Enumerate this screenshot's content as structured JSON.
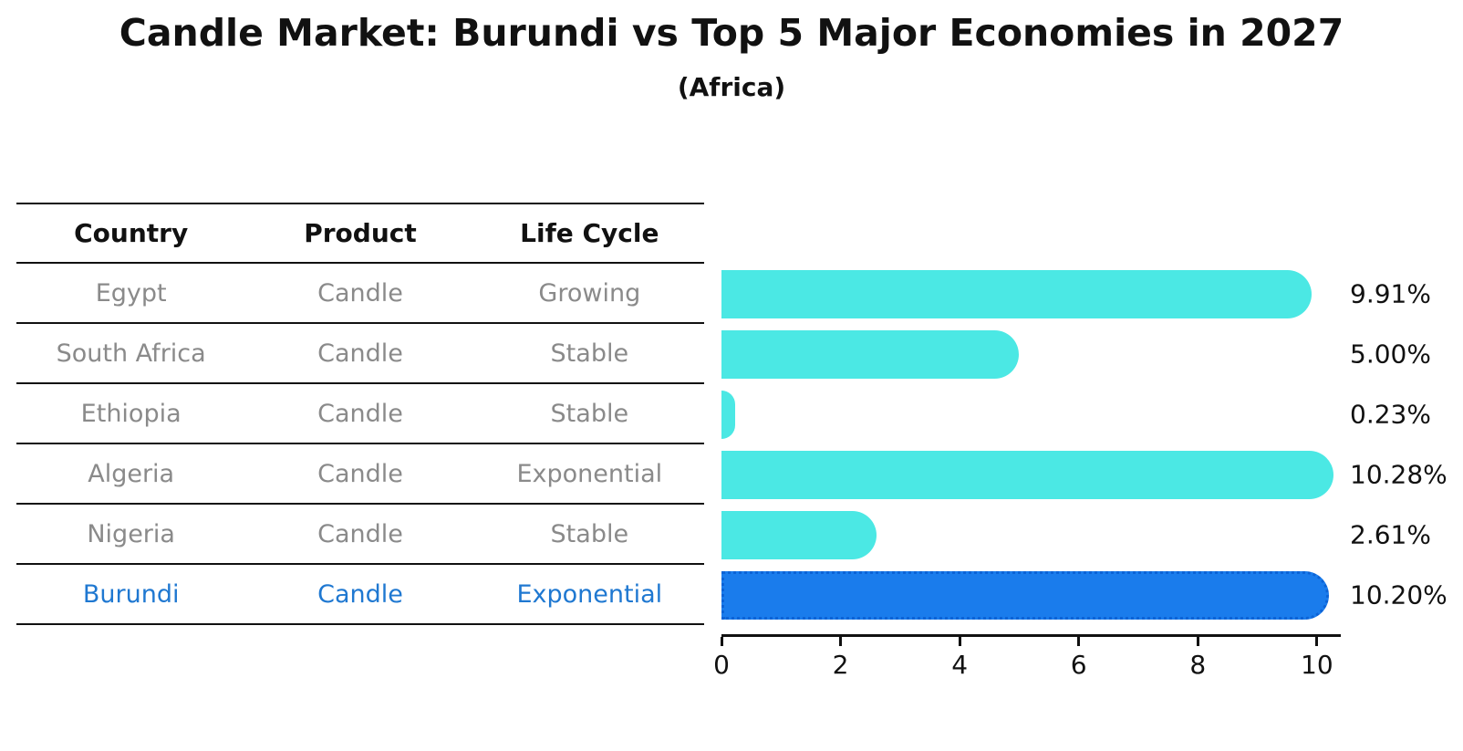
{
  "title": "Candle Market: Burundi vs Top 5 Major Economies in 2027",
  "subtitle": "(Africa)",
  "table": {
    "headers": [
      "Country",
      "Product",
      "Life Cycle"
    ],
    "rows": [
      {
        "country": "Egypt",
        "product": "Candle",
        "life_cycle": "Growing",
        "highlight": false
      },
      {
        "country": "South Africa",
        "product": "Candle",
        "life_cycle": "Stable",
        "highlight": false
      },
      {
        "country": "Ethiopia",
        "product": "Candle",
        "life_cycle": "Stable",
        "highlight": false
      },
      {
        "country": "Algeria",
        "product": "Candle",
        "life_cycle": "Exponential",
        "highlight": false
      },
      {
        "country": "Nigeria",
        "product": "Candle",
        "life_cycle": "Stable",
        "highlight": false
      },
      {
        "country": "Burundi",
        "product": "Candle",
        "life_cycle": "Exponential",
        "highlight": true
      }
    ]
  },
  "chart_data": {
    "type": "bar",
    "orientation": "horizontal",
    "title": "Candle Market: Burundi vs Top 5 Major Economies in 2027",
    "subtitle": "(Africa)",
    "categories": [
      "Egypt",
      "South Africa",
      "Ethiopia",
      "Algeria",
      "Nigeria",
      "Burundi"
    ],
    "values": [
      9.91,
      5.0,
      0.23,
      10.28,
      2.61,
      10.2
    ],
    "value_labels": [
      "9.91%",
      "5.00%",
      "0.23%",
      "10.28%",
      "2.61%",
      "10.20%"
    ],
    "highlight_index": 5,
    "x_ticks": [
      0,
      2,
      4,
      6,
      8,
      10
    ],
    "x_max": 10.4,
    "grid": false,
    "legend": false,
    "colors": {
      "bar": "#4BE8E4",
      "highlight_bar": "#1A7CEC",
      "highlight_border": "#0C63D6",
      "highlight_text": "#1F78D1",
      "cell_text": "#8A8A8A",
      "text": "#111111"
    }
  }
}
